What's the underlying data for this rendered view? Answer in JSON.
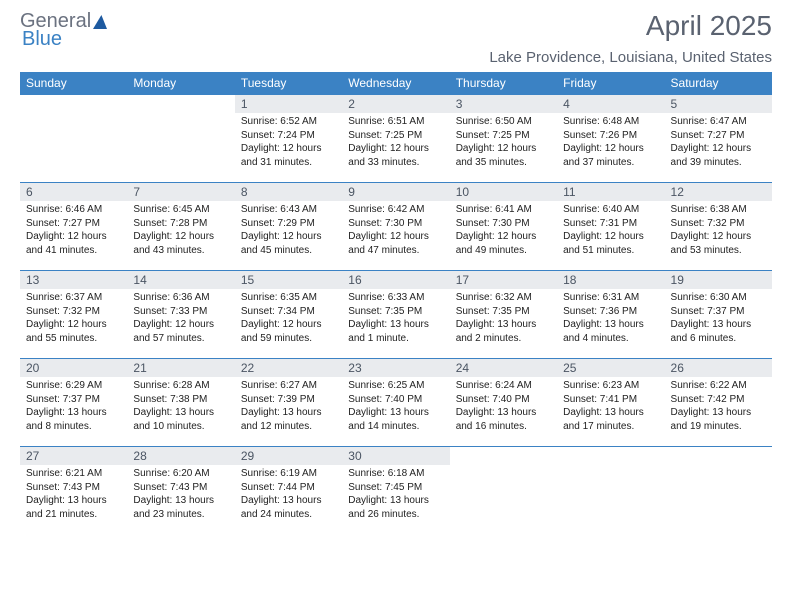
{
  "brand": {
    "general": "General",
    "blue": "Blue"
  },
  "title": "April 2025",
  "location": "Lake Providence, Louisiana, United States",
  "days_of_week": [
    "Sunday",
    "Monday",
    "Tuesday",
    "Wednesday",
    "Thursday",
    "Friday",
    "Saturday"
  ],
  "header_bg": "#3b82c4",
  "header_fg": "#ffffff",
  "daynum_bg": "#e9ebee",
  "border_color": "#3b82c4",
  "weeks": [
    [
      {
        "empty": true
      },
      {
        "empty": true
      },
      {
        "num": "1",
        "sunrise": "Sunrise: 6:52 AM",
        "sunset": "Sunset: 7:24 PM",
        "daylight": "Daylight: 12 hours and 31 minutes."
      },
      {
        "num": "2",
        "sunrise": "Sunrise: 6:51 AM",
        "sunset": "Sunset: 7:25 PM",
        "daylight": "Daylight: 12 hours and 33 minutes."
      },
      {
        "num": "3",
        "sunrise": "Sunrise: 6:50 AM",
        "sunset": "Sunset: 7:25 PM",
        "daylight": "Daylight: 12 hours and 35 minutes."
      },
      {
        "num": "4",
        "sunrise": "Sunrise: 6:48 AM",
        "sunset": "Sunset: 7:26 PM",
        "daylight": "Daylight: 12 hours and 37 minutes."
      },
      {
        "num": "5",
        "sunrise": "Sunrise: 6:47 AM",
        "sunset": "Sunset: 7:27 PM",
        "daylight": "Daylight: 12 hours and 39 minutes."
      }
    ],
    [
      {
        "num": "6",
        "sunrise": "Sunrise: 6:46 AM",
        "sunset": "Sunset: 7:27 PM",
        "daylight": "Daylight: 12 hours and 41 minutes."
      },
      {
        "num": "7",
        "sunrise": "Sunrise: 6:45 AM",
        "sunset": "Sunset: 7:28 PM",
        "daylight": "Daylight: 12 hours and 43 minutes."
      },
      {
        "num": "8",
        "sunrise": "Sunrise: 6:43 AM",
        "sunset": "Sunset: 7:29 PM",
        "daylight": "Daylight: 12 hours and 45 minutes."
      },
      {
        "num": "9",
        "sunrise": "Sunrise: 6:42 AM",
        "sunset": "Sunset: 7:30 PM",
        "daylight": "Daylight: 12 hours and 47 minutes."
      },
      {
        "num": "10",
        "sunrise": "Sunrise: 6:41 AM",
        "sunset": "Sunset: 7:30 PM",
        "daylight": "Daylight: 12 hours and 49 minutes."
      },
      {
        "num": "11",
        "sunrise": "Sunrise: 6:40 AM",
        "sunset": "Sunset: 7:31 PM",
        "daylight": "Daylight: 12 hours and 51 minutes."
      },
      {
        "num": "12",
        "sunrise": "Sunrise: 6:38 AM",
        "sunset": "Sunset: 7:32 PM",
        "daylight": "Daylight: 12 hours and 53 minutes."
      }
    ],
    [
      {
        "num": "13",
        "sunrise": "Sunrise: 6:37 AM",
        "sunset": "Sunset: 7:32 PM",
        "daylight": "Daylight: 12 hours and 55 minutes."
      },
      {
        "num": "14",
        "sunrise": "Sunrise: 6:36 AM",
        "sunset": "Sunset: 7:33 PM",
        "daylight": "Daylight: 12 hours and 57 minutes."
      },
      {
        "num": "15",
        "sunrise": "Sunrise: 6:35 AM",
        "sunset": "Sunset: 7:34 PM",
        "daylight": "Daylight: 12 hours and 59 minutes."
      },
      {
        "num": "16",
        "sunrise": "Sunrise: 6:33 AM",
        "sunset": "Sunset: 7:35 PM",
        "daylight": "Daylight: 13 hours and 1 minute."
      },
      {
        "num": "17",
        "sunrise": "Sunrise: 6:32 AM",
        "sunset": "Sunset: 7:35 PM",
        "daylight": "Daylight: 13 hours and 2 minutes."
      },
      {
        "num": "18",
        "sunrise": "Sunrise: 6:31 AM",
        "sunset": "Sunset: 7:36 PM",
        "daylight": "Daylight: 13 hours and 4 minutes."
      },
      {
        "num": "19",
        "sunrise": "Sunrise: 6:30 AM",
        "sunset": "Sunset: 7:37 PM",
        "daylight": "Daylight: 13 hours and 6 minutes."
      }
    ],
    [
      {
        "num": "20",
        "sunrise": "Sunrise: 6:29 AM",
        "sunset": "Sunset: 7:37 PM",
        "daylight": "Daylight: 13 hours and 8 minutes."
      },
      {
        "num": "21",
        "sunrise": "Sunrise: 6:28 AM",
        "sunset": "Sunset: 7:38 PM",
        "daylight": "Daylight: 13 hours and 10 minutes."
      },
      {
        "num": "22",
        "sunrise": "Sunrise: 6:27 AM",
        "sunset": "Sunset: 7:39 PM",
        "daylight": "Daylight: 13 hours and 12 minutes."
      },
      {
        "num": "23",
        "sunrise": "Sunrise: 6:25 AM",
        "sunset": "Sunset: 7:40 PM",
        "daylight": "Daylight: 13 hours and 14 minutes."
      },
      {
        "num": "24",
        "sunrise": "Sunrise: 6:24 AM",
        "sunset": "Sunset: 7:40 PM",
        "daylight": "Daylight: 13 hours and 16 minutes."
      },
      {
        "num": "25",
        "sunrise": "Sunrise: 6:23 AM",
        "sunset": "Sunset: 7:41 PM",
        "daylight": "Daylight: 13 hours and 17 minutes."
      },
      {
        "num": "26",
        "sunrise": "Sunrise: 6:22 AM",
        "sunset": "Sunset: 7:42 PM",
        "daylight": "Daylight: 13 hours and 19 minutes."
      }
    ],
    [
      {
        "num": "27",
        "sunrise": "Sunrise: 6:21 AM",
        "sunset": "Sunset: 7:43 PM",
        "daylight": "Daylight: 13 hours and 21 minutes."
      },
      {
        "num": "28",
        "sunrise": "Sunrise: 6:20 AM",
        "sunset": "Sunset: 7:43 PM",
        "daylight": "Daylight: 13 hours and 23 minutes."
      },
      {
        "num": "29",
        "sunrise": "Sunrise: 6:19 AM",
        "sunset": "Sunset: 7:44 PM",
        "daylight": "Daylight: 13 hours and 24 minutes."
      },
      {
        "num": "30",
        "sunrise": "Sunrise: 6:18 AM",
        "sunset": "Sunset: 7:45 PM",
        "daylight": "Daylight: 13 hours and 26 minutes."
      },
      {
        "empty": true
      },
      {
        "empty": true
      },
      {
        "empty": true
      }
    ]
  ]
}
